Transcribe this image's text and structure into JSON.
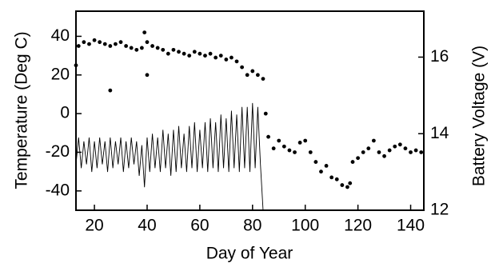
{
  "chart_data": {
    "type": "scatter",
    "xlabel": "Day of Year",
    "ylabel": "Temperature (Deg C)",
    "y2label": "Battery Voltage (V)",
    "xlim": [
      13,
      145
    ],
    "xticks": [
      20,
      40,
      60,
      80,
      100,
      120,
      140
    ],
    "ylim": [
      -50,
      53
    ],
    "yticks": [
      -40,
      -20,
      0,
      20,
      40
    ],
    "y2lim": [
      12,
      17.2
    ],
    "y2ticks": [
      12,
      14,
      16
    ],
    "series": [
      {
        "kind": "scatter",
        "color": "#000000",
        "axis": "y",
        "x": [
          13,
          14,
          16,
          18,
          20,
          22,
          24,
          26,
          26,
          28,
          30,
          32,
          34,
          36,
          38,
          39,
          40,
          40,
          42,
          44,
          46,
          48,
          50,
          52,
          54,
          56,
          58,
          60,
          62,
          64,
          66,
          68,
          70,
          72,
          74,
          76,
          78,
          80,
          82,
          84,
          85,
          86,
          88,
          90,
          92,
          94,
          96,
          98,
          100,
          102,
          104,
          106,
          108,
          110,
          112,
          114,
          116,
          117,
          118,
          120,
          122,
          124,
          126,
          128,
          130,
          132,
          134,
          136,
          138,
          140,
          142,
          144
        ],
        "values": [
          25,
          35,
          37,
          36,
          38,
          37,
          36,
          35,
          12,
          36,
          37,
          35,
          34,
          33,
          34,
          42,
          37,
          20,
          35,
          34,
          33,
          31,
          33,
          32,
          31,
          30,
          32,
          31,
          30,
          31,
          29,
          30,
          28,
          29,
          27,
          24,
          20,
          22,
          20,
          18,
          0,
          -12,
          -18,
          -14,
          -17,
          -19,
          -20,
          -15,
          -14,
          -20,
          -25,
          -30,
          -27,
          -33,
          -34,
          -37,
          -38,
          -36,
          -25,
          -23,
          -20,
          -18,
          -14,
          -20,
          -22,
          -19,
          -17,
          -16,
          -18,
          -20,
          -19,
          -20
        ]
      },
      {
        "kind": "line",
        "color": "#000000",
        "axis": "y2",
        "x": [
          13,
          14,
          15,
          16,
          17,
          18,
          19,
          20,
          21,
          22,
          23,
          24,
          25,
          26,
          27,
          28,
          29,
          30,
          31,
          32,
          33,
          34,
          35,
          36,
          37,
          38,
          39,
          40,
          41,
          42,
          43,
          44,
          45,
          46,
          47,
          48,
          49,
          50,
          51,
          52,
          53,
          54,
          55,
          56,
          57,
          58,
          59,
          60,
          61,
          62,
          63,
          64,
          65,
          66,
          67,
          68,
          69,
          70,
          71,
          72,
          73,
          74,
          75,
          76,
          77,
          78,
          79,
          80,
          81,
          82,
          83,
          84
        ],
        "values": [
          13.2,
          13.9,
          13.1,
          13.8,
          13.2,
          13.9,
          13.0,
          13.8,
          13.1,
          13.9,
          13.2,
          13.8,
          13.0,
          13.9,
          13.1,
          13.8,
          13.2,
          13.9,
          13.0,
          13.8,
          13.1,
          13.9,
          13.2,
          13.8,
          12.9,
          13.7,
          12.6,
          13.9,
          13.0,
          14.0,
          13.1,
          13.9,
          13.0,
          14.1,
          13.1,
          14.0,
          12.9,
          14.1,
          13.0,
          14.2,
          13.1,
          14.0,
          13.0,
          14.2,
          13.1,
          14.3,
          13.0,
          14.1,
          13.1,
          14.3,
          13.0,
          14.4,
          13.1,
          14.3,
          13.0,
          14.5,
          13.1,
          14.4,
          13.0,
          14.6,
          13.1,
          14.5,
          13.0,
          14.7,
          13.1,
          14.7,
          13.0,
          14.8,
          13.1,
          14.7,
          13.2,
          12.0
        ]
      }
    ]
  }
}
